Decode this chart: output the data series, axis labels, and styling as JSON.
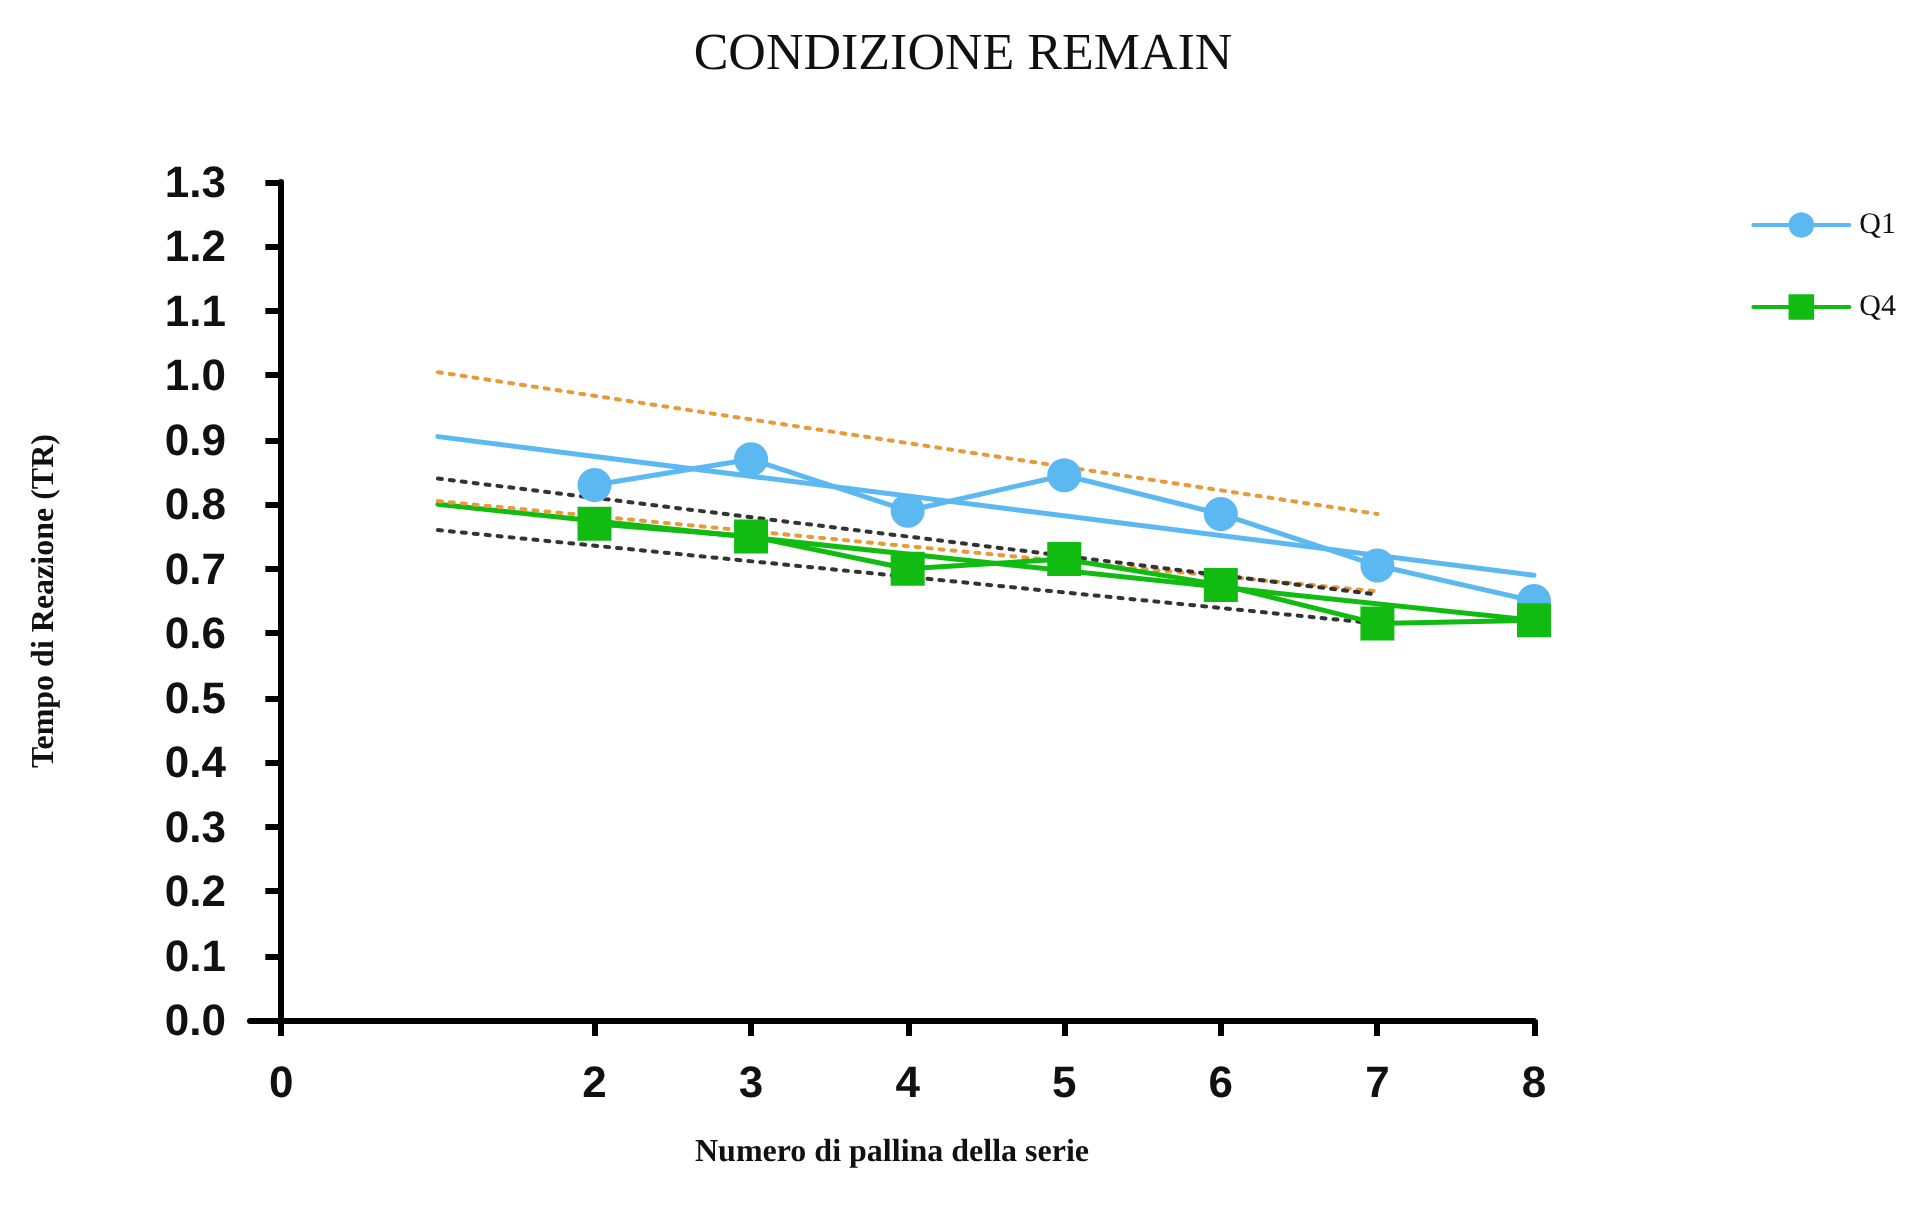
{
  "chart_data": {
    "type": "line",
    "title": "CONDIZIONE REMAIN",
    "xlabel": "Numero di pallina della serie",
    "ylabel": "Tempo di Reazione (TR)",
    "x": [
      2,
      3,
      4,
      5,
      6,
      7,
      8
    ],
    "series": [
      {
        "name": "Q1",
        "color": "#5bb8f0",
        "marker": "circle",
        "values": [
          0.83,
          0.87,
          0.79,
          0.845,
          0.785,
          0.705,
          0.65
        ]
      },
      {
        "name": "Q4",
        "color": "#11bb11",
        "marker": "square",
        "values": [
          0.77,
          0.75,
          0.7,
          0.715,
          0.675,
          0.615,
          0.62
        ]
      },
      {
        "color": "#5bb8f0",
        "x": [
          1,
          8
        ],
        "values": [
          0.905,
          0.69
        ],
        "marker": "none"
      },
      {
        "color": "#11bb11",
        "x": [
          1,
          8
        ],
        "values": [
          0.8,
          0.62
        ],
        "marker": "none"
      },
      {
        "color": "#e89a3a",
        "x": [
          1,
          7
        ],
        "values": [
          1.005,
          0.785
        ],
        "marker": "none",
        "line_style": "dotted"
      },
      {
        "color": "#e89a3a",
        "x": [
          1,
          7
        ],
        "values": [
          0.805,
          0.665
        ],
        "marker": "none",
        "line_style": "dotted"
      },
      {
        "color": "#333333",
        "x": [
          1,
          7
        ],
        "values": [
          0.84,
          0.66
        ],
        "marker": "none",
        "line_style": "dotted"
      },
      {
        "color": "#333333",
        "x": [
          1,
          7
        ],
        "values": [
          0.76,
          0.615
        ],
        "marker": "none",
        "line_style": "dotted"
      }
    ],
    "xlim": [
      -0.2,
      8
    ],
    "xticks": [
      0,
      2,
      3,
      4,
      5,
      6,
      7,
      8
    ],
    "ylim": [
      0,
      1.3
    ],
    "yticks": [
      {
        "value": 0,
        "label": "0.0"
      },
      0.1,
      0.2,
      0.3,
      0.4,
      0.5,
      0.6,
      0.7,
      0.8,
      0.9,
      {
        "value": 1,
        "label": "1.0"
      },
      1.1,
      1.2,
      1.3
    ],
    "grid": false,
    "legend": "top right"
  }
}
